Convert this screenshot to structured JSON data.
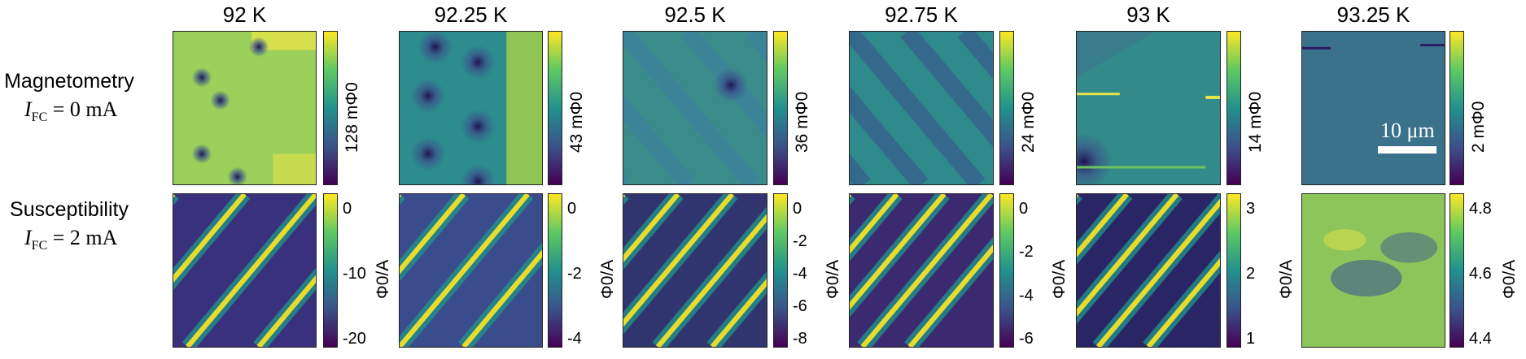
{
  "rows": {
    "magnetometry": {
      "label": "Magnetometry",
      "formula_var": "I",
      "formula_sub": "FC",
      "formula_rest": " = 0 mA"
    },
    "susceptibility": {
      "label": "Susceptibility",
      "formula_var": "I",
      "formula_sub": "FC",
      "formula_rest": " = 2 mA"
    }
  },
  "panels": [
    {
      "temperature": "92 K",
      "mag_cbar": "128 mΦ0",
      "sus_cbar": "Φ0/A",
      "sus_ticks": [
        "0",
        "-10",
        "-20"
      ]
    },
    {
      "temperature": "92.25 K",
      "mag_cbar": "43 mΦ0",
      "sus_cbar": "Φ0/A",
      "sus_ticks": [
        "0",
        "-2",
        "-4"
      ]
    },
    {
      "temperature": "92.5 K",
      "mag_cbar": "36 mΦ0",
      "sus_cbar": "Φ0/A",
      "sus_ticks": [
        "0",
        "-2",
        "-4",
        "-6",
        "-8"
      ]
    },
    {
      "temperature": "92.75 K",
      "mag_cbar": "24 mΦ0",
      "sus_cbar": "Φ0/A",
      "sus_ticks": [
        "0",
        "-2",
        "-4",
        "-6"
      ]
    },
    {
      "temperature": "93 K",
      "mag_cbar": "14 mΦ0",
      "sus_cbar": "Φ0/A",
      "sus_ticks": [
        "3",
        "2",
        "1"
      ]
    },
    {
      "temperature": "93.25 K",
      "mag_cbar": "2 mΦ0",
      "sus_cbar": "Φ0/A",
      "sus_ticks": [
        "4.8",
        "4.6",
        "4.4"
      ]
    }
  ],
  "scalebar": {
    "label": "10 μm"
  },
  "colors": {
    "viridis_low": "#440154",
    "viridis_mid": "#21918c",
    "viridis_high": "#fde725"
  }
}
